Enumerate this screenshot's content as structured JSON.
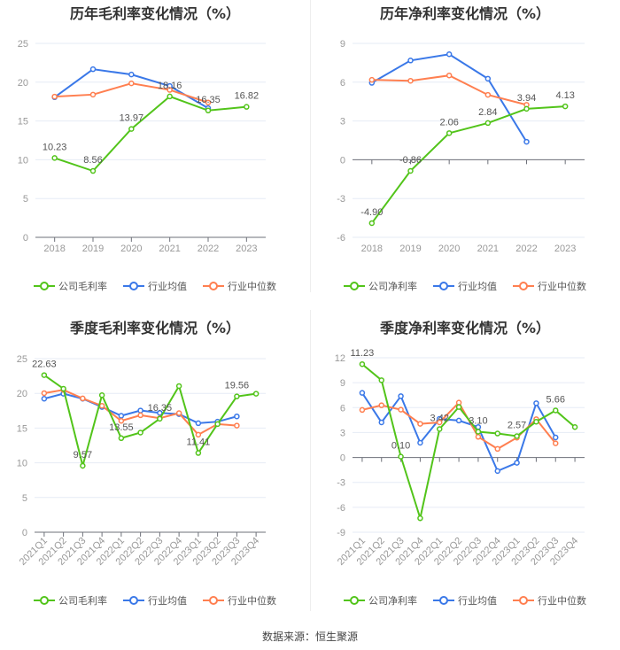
{
  "series_names": [
    "公司毛利率",
    "行业均值",
    "行业中位数"
  ],
  "series_names_net": [
    "公司净利率",
    "行业均值",
    "行业中位数"
  ],
  "colors": {
    "company": "#52c41a",
    "avg": "#3a78e8",
    "median": "#ff7f50"
  },
  "source": "数据来源：恒生聚源",
  "chart_data": [
    {
      "type": "line",
      "title": "历年毛利率变化情况（%）",
      "categories": [
        "2018",
        "2019",
        "2020",
        "2021",
        "2022",
        "2023"
      ],
      "ylim": [
        0,
        25
      ],
      "yticks": [
        0,
        5,
        10,
        15,
        20,
        25
      ],
      "series": [
        {
          "name": "公司毛利率",
          "values": [
            10.23,
            8.56,
            13.97,
            18.16,
            16.35,
            16.82
          ],
          "labels": [
            "10.23",
            "8.56",
            "13.97",
            "18.16",
            "16.35",
            "16.82"
          ]
        },
        {
          "name": "行业均值",
          "values": [
            18.06,
            21.67,
            20.99,
            19.5,
            16.65,
            null
          ]
        },
        {
          "name": "行业中位数",
          "values": [
            18.14,
            18.4,
            19.85,
            19.0,
            17.38,
            null
          ]
        }
      ]
    },
    {
      "type": "line",
      "title": "历年净利率变化情况（%）",
      "categories": [
        "2018",
        "2019",
        "2020",
        "2021",
        "2022",
        "2023"
      ],
      "ylim": [
        -6,
        9
      ],
      "yticks": [
        -6,
        -3,
        0,
        3,
        6,
        9
      ],
      "series": [
        {
          "name": "公司净利率",
          "values": [
            -4.9,
            -0.86,
            2.06,
            2.84,
            3.94,
            4.13
          ],
          "labels": [
            "-4.90",
            "-0.86",
            "2.06",
            "2.84",
            "3.94",
            "4.13"
          ]
        },
        {
          "name": "行业均值",
          "values": [
            5.95,
            7.68,
            8.16,
            6.27,
            1.39,
            null
          ]
        },
        {
          "name": "行业中位数",
          "values": [
            6.18,
            6.11,
            6.52,
            5.02,
            4.25,
            null
          ]
        }
      ]
    },
    {
      "type": "line",
      "title": "季度毛利率变化情况（%）",
      "categories": [
        "2021Q1",
        "2021Q2",
        "2021Q3",
        "2021Q4",
        "2022Q1",
        "2022Q2",
        "2022Q3",
        "2022Q4",
        "2023Q1",
        "2023Q2",
        "2023Q3",
        "2023Q4"
      ],
      "ylim": [
        0,
        25
      ],
      "yticks": [
        0,
        5,
        10,
        15,
        20,
        25
      ],
      "series": [
        {
          "name": "公司毛利率",
          "values": [
            22.63,
            20.67,
            9.57,
            19.74,
            13.55,
            14.35,
            16.35,
            21.05,
            11.41,
            15.58,
            19.56,
            19.95
          ],
          "labels": [
            "22.63",
            null,
            "9.57",
            null,
            "13.55",
            null,
            "16.35",
            null,
            "11.41",
            null,
            "19.56",
            null
          ]
        },
        {
          "name": "行业均值",
          "values": [
            19.23,
            19.95,
            19.23,
            18.04,
            16.77,
            17.53,
            17.19,
            17.02,
            15.7,
            15.92,
            16.68,
            null
          ]
        },
        {
          "name": "行业中位数",
          "values": [
            20.03,
            20.5,
            19.27,
            18.21,
            16.04,
            16.85,
            16.43,
            17.15,
            14.05,
            15.58,
            15.36,
            null
          ]
        }
      ]
    },
    {
      "type": "line",
      "title": "季度净利率变化情况（%）",
      "categories": [
        "2021Q1",
        "2021Q2",
        "2021Q3",
        "2021Q4",
        "2022Q1",
        "2022Q2",
        "2022Q3",
        "2022Q4",
        "2023Q1",
        "2023Q2",
        "2023Q3",
        "2023Q4"
      ],
      "ylim": [
        -9,
        12
      ],
      "yticks": [
        -9,
        -6,
        -3,
        0,
        3,
        6,
        9,
        12
      ],
      "series": [
        {
          "name": "公司净利率",
          "values": [
            11.23,
            9.3,
            0.1,
            -7.31,
            3.42,
            6.07,
            3.1,
            2.88,
            2.57,
            4.3,
            5.66,
            3.66
          ],
          "labels": [
            "11.23",
            null,
            "0.10",
            null,
            "3.42",
            null,
            "3.10",
            null,
            "2.57",
            null,
            "5.66",
            null
          ]
        },
        {
          "name": "行业均值",
          "values": [
            7.77,
            4.22,
            7.38,
            1.77,
            4.65,
            4.44,
            3.66,
            -1.63,
            -0.64,
            6.53,
            2.41,
            null
          ]
        },
        {
          "name": "行业中位数",
          "values": [
            5.72,
            6.28,
            5.75,
            4.05,
            4.22,
            6.6,
            2.48,
            1.03,
            2.38,
            4.61,
            1.7,
            null
          ]
        }
      ]
    }
  ]
}
